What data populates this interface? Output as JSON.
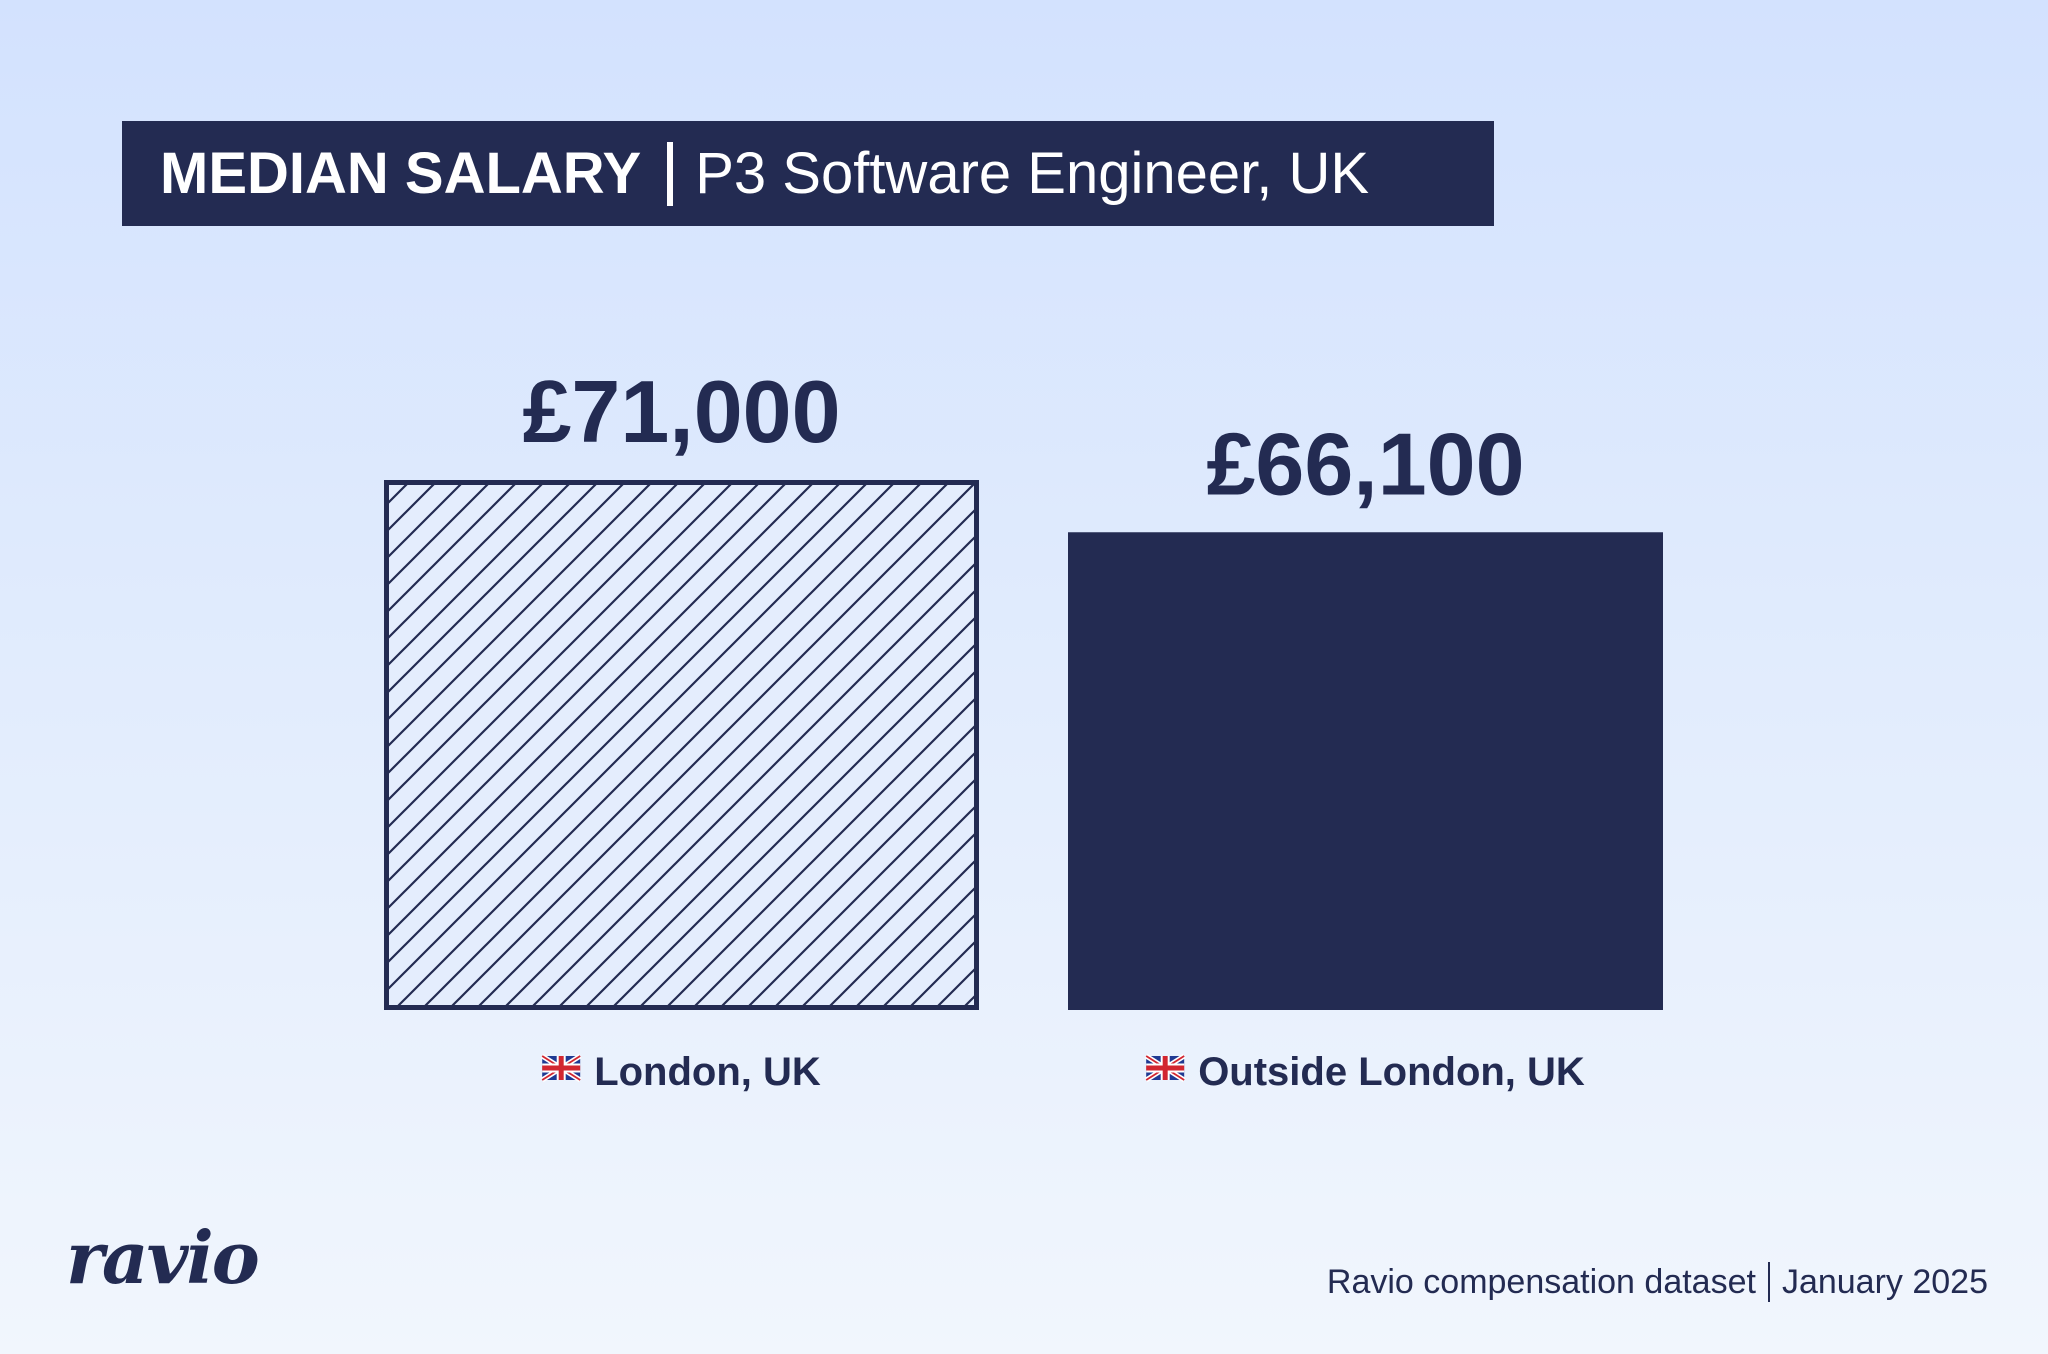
{
  "title": {
    "bold": "MEDIAN SALARY",
    "light": "P3 Software Engineer, UK"
  },
  "chart_data": {
    "type": "bar",
    "categories": [
      "London, UK",
      "Outside London, UK"
    ],
    "values": [
      71000,
      66100
    ],
    "value_labels": [
      "£71,000",
      "£66,100"
    ],
    "category_icons": [
      "uk-flag-icon",
      "uk-flag-icon"
    ],
    "bar_styles": [
      "hatched",
      "solid"
    ],
    "colors": {
      "bar": "#232b52",
      "hatch_background": "#e4edfd"
    },
    "grid": false
  },
  "logo": "ravio",
  "footer": {
    "source": "Ravio compensation dataset",
    "date": "January 2025"
  }
}
